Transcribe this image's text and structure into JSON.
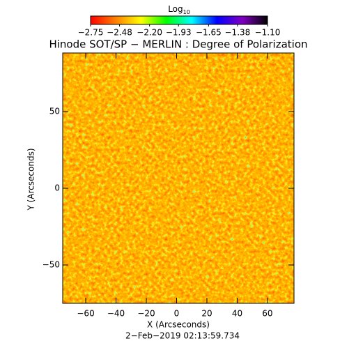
{
  "chart_data": {
    "type": "heatmap",
    "title": "Hinode SOT/SP − MERLIN : Degree of Polarization",
    "x_label": "X (Arcseconds)",
    "y_label": "Y (Arcseconds)",
    "footer": "2−Feb−2019 02:13:59.734",
    "colorbar_label": {
      "text": "Log",
      "subscript": "10"
    },
    "colormap": [
      "#ff0000",
      "#ff8000",
      "#ffff00",
      "#00ff00",
      "#00ffff",
      "#0000ff",
      "#8000c0",
      "#000000"
    ],
    "clim": [
      -2.75,
      -1.1
    ],
    "cticks": [
      {
        "value": -2.75,
        "label": "−2.75"
      },
      {
        "value": -2.48,
        "label": "−2.48"
      },
      {
        "value": -2.2,
        "label": "−2.20"
      },
      {
        "value": -1.93,
        "label": "−1.93"
      },
      {
        "value": -1.65,
        "label": "−1.65"
      },
      {
        "value": -1.38,
        "label": "−1.38"
      },
      {
        "value": -1.1,
        "label": "−1.10"
      }
    ],
    "xlim": [
      -75.2,
      77.5
    ],
    "ylim": [
      -75,
      88.2
    ],
    "xticks": [
      {
        "value": -60,
        "label": "−60"
      },
      {
        "value": -40,
        "label": "−40"
      },
      {
        "value": -20,
        "label": "−20"
      },
      0,
      20,
      40,
      60
    ],
    "yticks": [
      {
        "value": -50,
        "label": "−50"
      },
      0,
      50
    ]
  }
}
